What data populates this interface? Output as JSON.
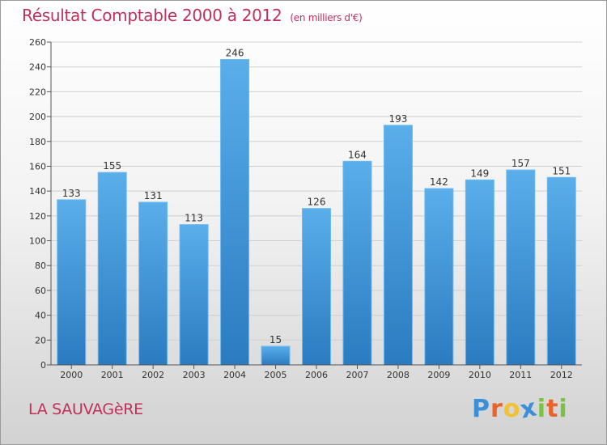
{
  "title": "Résultat Comptable 2000 à 2012",
  "subtitle": "(en milliers d'€)",
  "place": "LA SAUVAGèRE",
  "logo": {
    "letters": [
      "P",
      "r",
      "o",
      "x",
      "i",
      "t",
      "i"
    ],
    "colors": [
      "#3a8fd8",
      "#e8642a",
      "#f1c232",
      "#3a8fd8",
      "#7cc243",
      "#e8642a",
      "#7cc243"
    ]
  },
  "colors": {
    "bar_top": "#5aaeea",
    "bar_bottom": "#2a7bc0",
    "grid": "#cfcfcf",
    "title": "#c0305a"
  },
  "chart_data": {
    "type": "bar",
    "title": "Résultat Comptable 2000 à 2012",
    "xlabel": "",
    "ylabel": "",
    "categories": [
      "2000",
      "2001",
      "2002",
      "2003",
      "2004",
      "2005",
      "2006",
      "2007",
      "2008",
      "2009",
      "2010",
      "2011",
      "2012"
    ],
    "values": [
      133,
      155,
      131,
      113,
      246,
      15,
      126,
      164,
      193,
      142,
      149,
      157,
      151
    ],
    "ylim": [
      0,
      260
    ],
    "yticks": [
      0,
      20,
      40,
      60,
      80,
      100,
      120,
      140,
      160,
      180,
      200,
      220,
      240,
      260
    ],
    "grid": true
  }
}
